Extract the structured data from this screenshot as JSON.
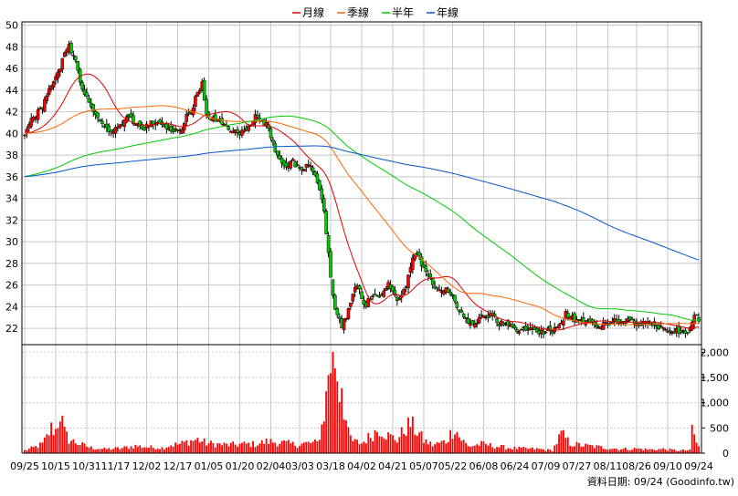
{
  "chart_data": {
    "type": "candlestick",
    "legend": [
      {
        "name": "月線",
        "color": "#dd0000"
      },
      {
        "name": "季線",
        "color": "#ff6600"
      },
      {
        "name": "半年",
        "color": "#00cc00"
      },
      {
        "name": "年線",
        "color": "#0055cc"
      }
    ],
    "price_axis": {
      "ticks": [
        22,
        24,
        26,
        28,
        30,
        32,
        34,
        36,
        38,
        40,
        42,
        44,
        46,
        48,
        50
      ],
      "ylim": [
        20.5,
        50.3
      ]
    },
    "volume_axis": {
      "ticks": [
        "0",
        "500",
        "1,000",
        "1,500",
        "2,000"
      ],
      "values": [
        0,
        500,
        1000,
        1500,
        2000
      ],
      "ylim": [
        0,
        2150
      ]
    },
    "x_labels": [
      "09/25",
      "10/15",
      "10/31",
      "11/17",
      "12/02",
      "12/17",
      "01/05",
      "01/20",
      "02/04",
      "03/03",
      "03/18",
      "04/02",
      "04/21",
      "05/07",
      "05/22",
      "06/08",
      "06/24",
      "07/09",
      "07/27",
      "08/11",
      "08/26",
      "09/10",
      "09/24"
    ],
    "price_anchors": [
      [
        0,
        40.0
      ],
      [
        4,
        41.5
      ],
      [
        8,
        42.5
      ],
      [
        12,
        44.5
      ],
      [
        16,
        46.0
      ],
      [
        18,
        47.5
      ],
      [
        20,
        48.0
      ],
      [
        22,
        47.0
      ],
      [
        24,
        46.0
      ],
      [
        26,
        44.0
      ],
      [
        30,
        42.5
      ],
      [
        34,
        41.0
      ],
      [
        38,
        40.0
      ],
      [
        42,
        40.5
      ],
      [
        46,
        41.5
      ],
      [
        50,
        41.0
      ],
      [
        54,
        40.5
      ],
      [
        58,
        41.0
      ],
      [
        62,
        40.8
      ],
      [
        66,
        40.5
      ],
      [
        70,
        40.0
      ],
      [
        73,
        41.5
      ],
      [
        76,
        42.5
      ],
      [
        78,
        44.0
      ],
      [
        80,
        44.5
      ],
      [
        82,
        42.0
      ],
      [
        84,
        41.5
      ],
      [
        88,
        41.0
      ],
      [
        92,
        40.5
      ],
      [
        96,
        40.0
      ],
      [
        100,
        40.5
      ],
      [
        104,
        41.5
      ],
      [
        108,
        41.0
      ],
      [
        110,
        40.5
      ],
      [
        112,
        39.0
      ],
      [
        114,
        38.0
      ],
      [
        116,
        37.5
      ],
      [
        118,
        37.0
      ],
      [
        120,
        37.5
      ],
      [
        123,
        37.0
      ],
      [
        125,
        36.5
      ],
      [
        128,
        37.0
      ],
      [
        130,
        36.5
      ],
      [
        133,
        35.0
      ],
      [
        135,
        33.0
      ],
      [
        137,
        29.0
      ],
      [
        139,
        25.0
      ],
      [
        141,
        23.0
      ],
      [
        143,
        22.3
      ],
      [
        145,
        23.0
      ],
      [
        147,
        24.5
      ],
      [
        149,
        26.0
      ],
      [
        151,
        25.5
      ],
      [
        153,
        24.0
      ],
      [
        155,
        24.5
      ],
      [
        157,
        25.0
      ],
      [
        160,
        25.0
      ],
      [
        162,
        25.5
      ],
      [
        164,
        26.0
      ],
      [
        166,
        25.5
      ],
      [
        168,
        24.5
      ],
      [
        170,
        25.0
      ],
      [
        172,
        26.0
      ],
      [
        174,
        27.5
      ],
      [
        176,
        29.0
      ],
      [
        178,
        28.5
      ],
      [
        180,
        27.5
      ],
      [
        183,
        26.5
      ],
      [
        186,
        25.5
      ],
      [
        190,
        25.5
      ],
      [
        194,
        24.5
      ],
      [
        198,
        23.0
      ],
      [
        202,
        22.3
      ],
      [
        206,
        23.0
      ],
      [
        210,
        23.2
      ],
      [
        214,
        22.5
      ],
      [
        218,
        22.2
      ],
      [
        222,
        22.0
      ],
      [
        228,
        21.8
      ],
      [
        234,
        21.7
      ],
      [
        238,
        21.8
      ],
      [
        242,
        22.5
      ],
      [
        244,
        23.5
      ],
      [
        246,
        23.0
      ],
      [
        250,
        22.8
      ],
      [
        254,
        22.5
      ],
      [
        258,
        22.3
      ],
      [
        262,
        22.5
      ],
      [
        266,
        22.8
      ],
      [
        270,
        22.7
      ],
      [
        274,
        22.6
      ],
      [
        278,
        22.5
      ],
      [
        282,
        22.4
      ],
      [
        286,
        22.2
      ],
      [
        290,
        22.0
      ],
      [
        294,
        21.8
      ],
      [
        298,
        21.7
      ],
      [
        300,
        21.8
      ],
      [
        302,
        23.4
      ],
      [
        303,
        23.2
      ],
      [
        304,
        22.6
      ]
    ],
    "volume_anchors": [
      [
        0,
        60
      ],
      [
        4,
        120
      ],
      [
        8,
        200
      ],
      [
        10,
        350
      ],
      [
        12,
        550
      ],
      [
        14,
        500
      ],
      [
        16,
        900
      ],
      [
        18,
        450
      ],
      [
        20,
        300
      ],
      [
        22,
        260
      ],
      [
        26,
        180
      ],
      [
        30,
        120
      ],
      [
        36,
        90
      ],
      [
        44,
        110
      ],
      [
        50,
        160
      ],
      [
        56,
        130
      ],
      [
        62,
        120
      ],
      [
        66,
        180
      ],
      [
        70,
        200
      ],
      [
        74,
        260
      ],
      [
        78,
        300
      ],
      [
        82,
        220
      ],
      [
        86,
        200
      ],
      [
        92,
        180
      ],
      [
        98,
        200
      ],
      [
        104,
        200
      ],
      [
        110,
        260
      ],
      [
        116,
        230
      ],
      [
        122,
        190
      ],
      [
        128,
        220
      ],
      [
        132,
        230
      ],
      [
        134,
        600
      ],
      [
        136,
        1200
      ],
      [
        137,
        1800
      ],
      [
        138,
        2050
      ],
      [
        139,
        1950
      ],
      [
        140,
        2100
      ],
      [
        141,
        1750
      ],
      [
        142,
        1400
      ],
      [
        143,
        1650
      ],
      [
        144,
        1050
      ],
      [
        145,
        700
      ],
      [
        146,
        420
      ],
      [
        148,
        260
      ],
      [
        152,
        220
      ],
      [
        156,
        380
      ],
      [
        160,
        550
      ],
      [
        164,
        380
      ],
      [
        168,
        300
      ],
      [
        172,
        560
      ],
      [
        174,
        650
      ],
      [
        176,
        520
      ],
      [
        178,
        430
      ],
      [
        180,
        280
      ],
      [
        184,
        180
      ],
      [
        190,
        260
      ],
      [
        194,
        580
      ],
      [
        196,
        360
      ],
      [
        200,
        150
      ],
      [
        206,
        200
      ],
      [
        214,
        140
      ],
      [
        220,
        110
      ],
      [
        226,
        100
      ],
      [
        232,
        90
      ],
      [
        238,
        60
      ],
      [
        242,
        420
      ],
      [
        244,
        330
      ],
      [
        246,
        210
      ],
      [
        250,
        180
      ],
      [
        258,
        140
      ],
      [
        264,
        110
      ],
      [
        270,
        90
      ],
      [
        276,
        100
      ],
      [
        282,
        80
      ],
      [
        288,
        90
      ],
      [
        294,
        60
      ],
      [
        300,
        60
      ],
      [
        301,
        550
      ],
      [
        302,
        420
      ],
      [
        303,
        200
      ],
      [
        304,
        150
      ]
    ],
    "source_label": "資料日期: 09/24  (Goodinfo.tw)",
    "colors": {
      "up": "#ff0000",
      "down": "#00cc00",
      "volume": "#ff0000",
      "grid": "#c8c8c8",
      "axis": "#000000"
    }
  }
}
